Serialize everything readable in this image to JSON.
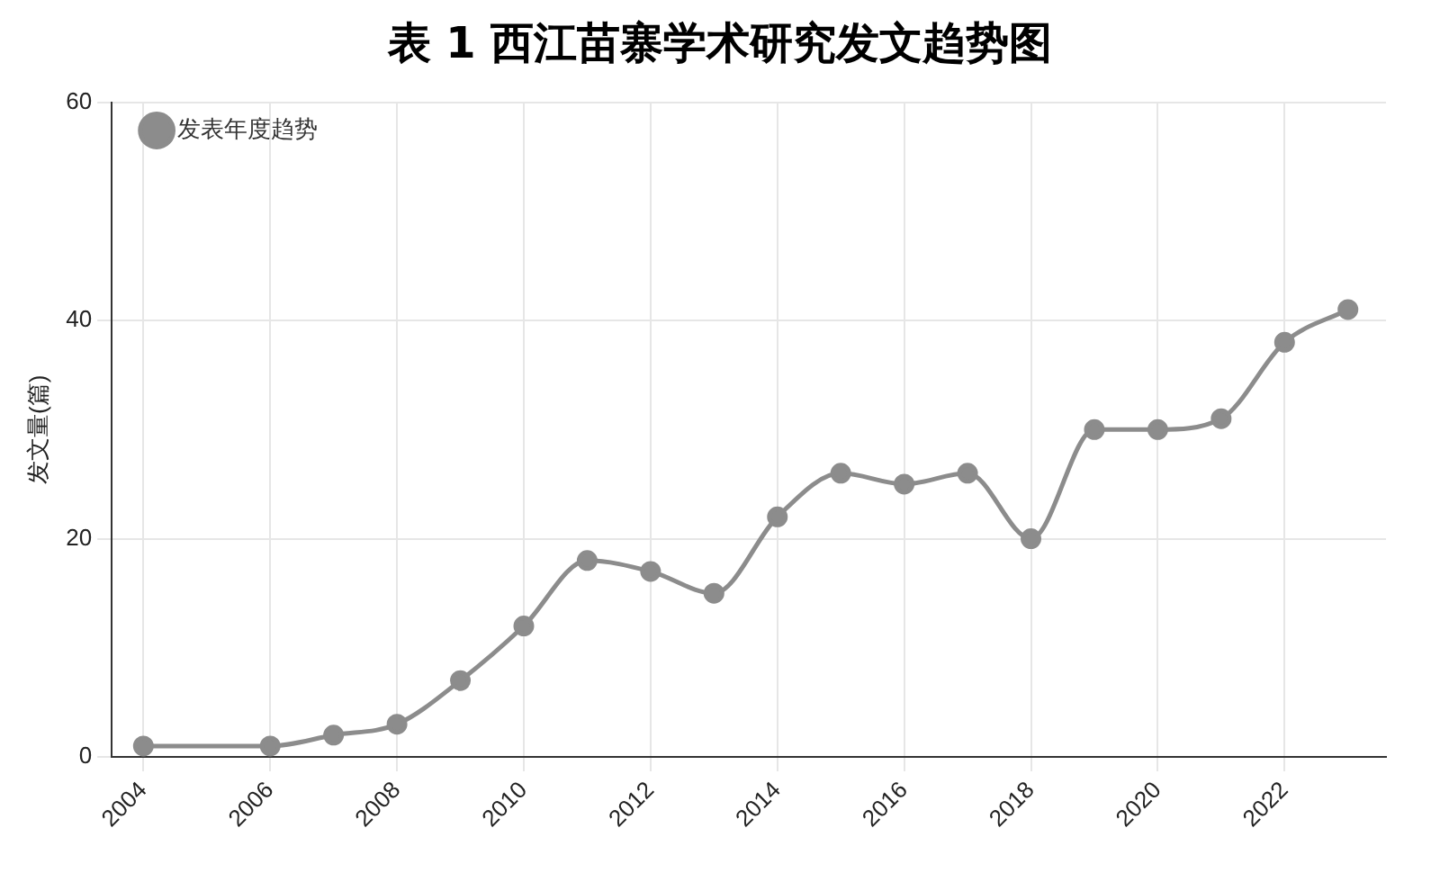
{
  "chart_data": {
    "type": "line",
    "title": "表 1 西江苗寨学术研究发文趋势图",
    "ylabel": "发文量(篇)",
    "x": [
      2004,
      2006,
      2007,
      2008,
      2009,
      2010,
      2011,
      2012,
      2013,
      2014,
      2015,
      2016,
      2017,
      2018,
      2019,
      2020,
      2021,
      2022,
      2023
    ],
    "series": [
      {
        "name": "发表年度趋势",
        "color": "#8c8c8c",
        "values": [
          1,
          1,
          2,
          3,
          7,
          12,
          18,
          17,
          15,
          22,
          26,
          25,
          26,
          20,
          30,
          30,
          31,
          38,
          41
        ]
      }
    ],
    "xlim": [
      2003.5,
      2023.6
    ],
    "xticks": [
      2004,
      2006,
      2008,
      2010,
      2012,
      2014,
      2016,
      2018,
      2020,
      2022
    ],
    "ylim": [
      0,
      60
    ],
    "yticks": [
      0,
      20,
      40,
      60
    ],
    "grid": true,
    "legend": "top left",
    "marker": "circle",
    "line_style": "solid"
  }
}
